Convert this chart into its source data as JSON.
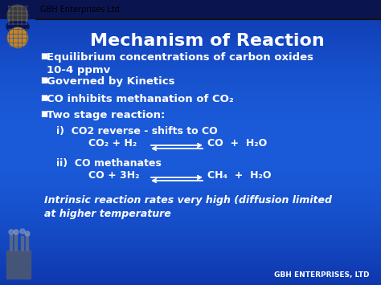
{
  "title": "Mechanism of Reaction",
  "header_text": "GBH Enterprises Ltd.",
  "footer_text": "GBH ENTERPRISES, LTD",
  "title_fontsize": 16,
  "bullet_fontsize": 9.5,
  "sub_fontsize": 9,
  "note_fontsize": 9,
  "bullet_points": [
    "Equilibrium concentrations of carbon oxides\n10-4 ppmv",
    "Governed by Kinetics",
    "CO inhibits methanation of CO₂",
    "Two stage reaction:"
  ],
  "note": "Intrinsic reaction rates very high (diffusion limited\nat higher temperature"
}
